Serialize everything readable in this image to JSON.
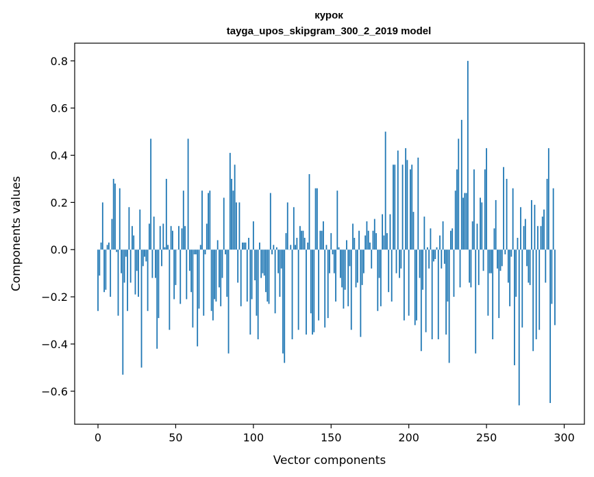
{
  "chart_data": {
    "type": "bar",
    "title": "курок",
    "subtitle": "tayga_upos_skipgram_300_2_2019 model",
    "xlabel": "Vector components",
    "ylabel": "Components values",
    "xlim": [
      -15,
      313
    ],
    "ylim": [
      -0.74,
      0.875
    ],
    "xticks": [
      0,
      50,
      100,
      150,
      200,
      250,
      300
    ],
    "xtick_labels": [
      "0",
      "50",
      "100",
      "150",
      "200",
      "250",
      "300"
    ],
    "yticks": [
      0.8,
      0.6,
      0.4,
      0.2,
      0.0,
      -0.2,
      -0.4,
      -0.6
    ],
    "ytick_labels": [
      "0.8",
      "0.6",
      "0.4",
      "0.2",
      "0.0",
      "−0.2",
      "−0.4",
      "−0.6"
    ],
    "bar_width": 0.8,
    "color": "#1f77b4",
    "values": [
      -0.26,
      -0.11,
      0.03,
      0.2,
      -0.18,
      -0.17,
      0.02,
      0.03,
      -0.2,
      0.13,
      0.3,
      0.28,
      -0.01,
      -0.28,
      0.26,
      -0.1,
      -0.53,
      -0.14,
      -0.03,
      -0.26,
      0.18,
      -0.14,
      0.1,
      0.06,
      -0.19,
      -0.09,
      -0.2,
      0.17,
      -0.5,
      -0.07,
      -0.03,
      -0.05,
      -0.26,
      0.11,
      0.47,
      -0.12,
      0.14,
      -0.12,
      -0.42,
      -0.29,
      0.1,
      -0.07,
      0.11,
      0.01,
      0.3,
      0.02,
      -0.34,
      0.1,
      0.08,
      -0.21,
      -0.15,
      0.0,
      0.1,
      -0.23,
      0.09,
      0.25,
      0.1,
      -0.21,
      0.47,
      -0.09,
      -0.18,
      -0.33,
      -0.02,
      -0.02,
      -0.41,
      -0.25,
      0.02,
      0.25,
      -0.28,
      -0.02,
      0.11,
      0.24,
      0.25,
      -0.26,
      -0.3,
      -0.21,
      -0.22,
      0.04,
      -0.16,
      -0.24,
      -0.12,
      0.22,
      -0.02,
      -0.2,
      -0.44,
      0.41,
      0.3,
      0.25,
      0.36,
      0.2,
      -0.14,
      0.2,
      -0.24,
      0.03,
      0.03,
      0.03,
      -0.22,
      0.05,
      -0.36,
      -0.21,
      0.12,
      -0.13,
      -0.28,
      -0.38,
      0.03,
      -0.12,
      -0.1,
      -0.11,
      -0.18,
      -0.22,
      -0.23,
      0.24,
      -0.02,
      0.02,
      -0.27,
      0.01,
      -0.1,
      -0.2,
      -0.08,
      -0.44,
      -0.48,
      0.07,
      0.2,
      0.0,
      0.02,
      -0.38,
      0.18,
      0.02,
      0.05,
      -0.34,
      0.1,
      0.08,
      0.08,
      0.05,
      -0.36,
      0.03,
      0.32,
      -0.27,
      -0.36,
      -0.35,
      0.26,
      0.26,
      -0.3,
      0.08,
      0.08,
      0.12,
      -0.33,
      0.02,
      -0.29,
      -0.1,
      0.07,
      -0.02,
      -0.1,
      -0.22,
      0.25,
      0.01,
      -0.12,
      -0.16,
      -0.25,
      -0.17,
      0.04,
      -0.24,
      -0.07,
      -0.34,
      0.11,
      0.05,
      -0.16,
      -0.14,
      0.08,
      -0.37,
      -0.15,
      -0.1,
      0.06,
      0.12,
      0.08,
      0.03,
      -0.08,
      0.08,
      0.13,
      0.07,
      -0.26,
      -0.12,
      -0.24,
      0.15,
      0.06,
      0.5,
      0.07,
      -0.18,
      0.15,
      -0.22,
      0.36,
      0.36,
      -0.1,
      0.42,
      -0.12,
      -0.08,
      0.36,
      -0.3,
      0.43,
      0.38,
      -0.28,
      0.34,
      0.36,
      0.16,
      -0.32,
      -0.3,
      0.39,
      -0.12,
      -0.43,
      -0.17,
      0.14,
      -0.35,
      0.01,
      -0.08,
      0.09,
      -0.38,
      -0.05,
      -0.04,
      0.01,
      -0.38,
      0.06,
      -0.08,
      0.12,
      -0.06,
      -0.36,
      -0.22,
      -0.48,
      0.08,
      0.09,
      -0.2,
      0.25,
      0.34,
      0.47,
      -0.16,
      0.55,
      0.22,
      0.24,
      0.24,
      0.8,
      -0.14,
      -0.16,
      0.12,
      0.34,
      -0.44,
      0.11,
      -0.15,
      0.22,
      0.2,
      -0.09,
      0.34,
      0.43,
      -0.28,
      -0.1,
      -0.1,
      -0.38,
      0.09,
      0.21,
      -0.08,
      -0.29,
      -0.09,
      -0.07,
      0.35,
      -0.02,
      0.3,
      -0.14,
      -0.24,
      -0.03,
      0.26,
      -0.49,
      -0.2,
      0.05,
      -0.66,
      0.18,
      -0.33,
      0.1,
      0.13,
      -0.07,
      -0.14,
      -0.15,
      0.21,
      -0.43,
      0.19,
      -0.38,
      0.1,
      -0.34,
      0.1,
      0.14,
      0.17,
      -0.14,
      0.3,
      0.43,
      -0.65,
      -0.23,
      0.26,
      -0.32
    ]
  }
}
